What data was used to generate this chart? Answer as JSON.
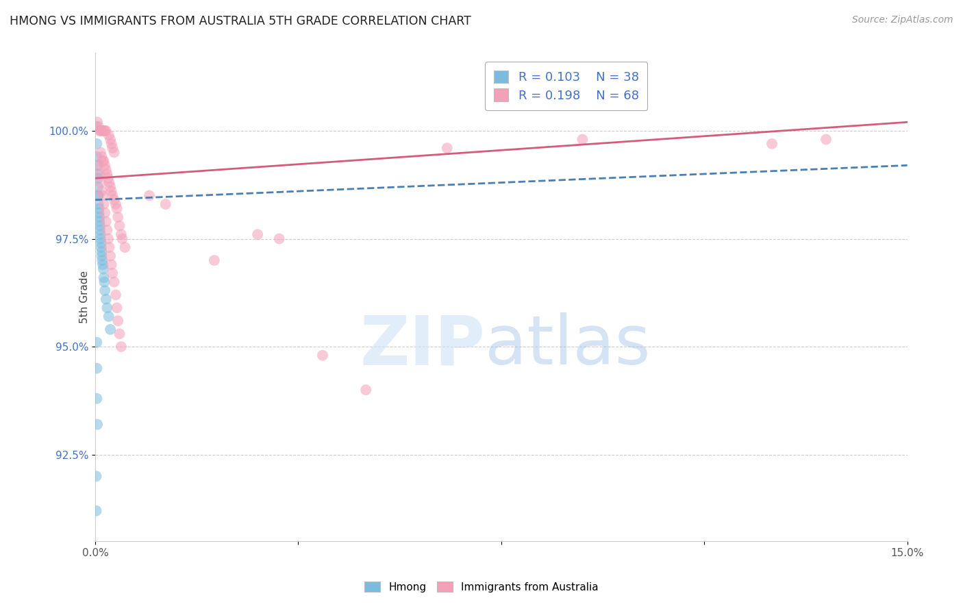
{
  "title": "HMONG VS IMMIGRANTS FROM AUSTRALIA 5TH GRADE CORRELATION CHART",
  "source": "Source: ZipAtlas.com",
  "ylabel": "5th Grade",
  "y_ticks": [
    92.5,
    95.0,
    97.5,
    100.0
  ],
  "y_tick_labels": [
    "92.5%",
    "95.0%",
    "97.5%",
    "100.0%"
  ],
  "xlim": [
    0.0,
    15.0
  ],
  "ylim": [
    90.5,
    101.8
  ],
  "blue_color": "#7bbcde",
  "pink_color": "#f4a0b8",
  "trend_blue_color": "#4a7fb5",
  "trend_pink_color": "#d45c7a",
  "blue_points": [
    [
      0.02,
      100.1
    ],
    [
      0.03,
      99.7
    ],
    [
      0.03,
      99.4
    ],
    [
      0.04,
      99.2
    ],
    [
      0.04,
      99.0
    ],
    [
      0.05,
      98.9
    ],
    [
      0.05,
      98.7
    ],
    [
      0.05,
      98.5
    ],
    [
      0.06,
      98.5
    ],
    [
      0.06,
      98.3
    ],
    [
      0.07,
      98.2
    ],
    [
      0.07,
      98.1
    ],
    [
      0.08,
      98.0
    ],
    [
      0.08,
      97.9
    ],
    [
      0.09,
      97.8
    ],
    [
      0.09,
      97.7
    ],
    [
      0.1,
      97.6
    ],
    [
      0.1,
      97.5
    ],
    [
      0.11,
      97.4
    ],
    [
      0.11,
      97.3
    ],
    [
      0.12,
      97.2
    ],
    [
      0.12,
      97.1
    ],
    [
      0.13,
      97.0
    ],
    [
      0.14,
      96.9
    ],
    [
      0.15,
      96.8
    ],
    [
      0.16,
      96.6
    ],
    [
      0.17,
      96.5
    ],
    [
      0.18,
      96.3
    ],
    [
      0.2,
      96.1
    ],
    [
      0.22,
      95.9
    ],
    [
      0.25,
      95.7
    ],
    [
      0.28,
      95.4
    ],
    [
      0.03,
      95.1
    ],
    [
      0.03,
      94.5
    ],
    [
      0.03,
      93.8
    ],
    [
      0.04,
      93.2
    ],
    [
      0.02,
      92.0
    ],
    [
      0.02,
      91.2
    ]
  ],
  "pink_points": [
    [
      0.04,
      100.2
    ],
    [
      0.06,
      100.1
    ],
    [
      0.08,
      100.0
    ],
    [
      0.1,
      100.0
    ],
    [
      0.12,
      100.0
    ],
    [
      0.14,
      100.0
    ],
    [
      0.16,
      100.0
    ],
    [
      0.18,
      100.0
    ],
    [
      0.2,
      100.0
    ],
    [
      0.25,
      99.9
    ],
    [
      0.28,
      99.8
    ],
    [
      0.3,
      99.7
    ],
    [
      0.32,
      99.6
    ],
    [
      0.35,
      99.5
    ],
    [
      0.1,
      99.5
    ],
    [
      0.12,
      99.4
    ],
    [
      0.14,
      99.3
    ],
    [
      0.16,
      99.3
    ],
    [
      0.18,
      99.2
    ],
    [
      0.2,
      99.1
    ],
    [
      0.22,
      99.0
    ],
    [
      0.24,
      98.9
    ],
    [
      0.26,
      98.8
    ],
    [
      0.28,
      98.7
    ],
    [
      0.3,
      98.6
    ],
    [
      0.32,
      98.5
    ],
    [
      0.35,
      98.4
    ],
    [
      0.38,
      98.3
    ],
    [
      0.4,
      98.2
    ],
    [
      0.42,
      98.0
    ],
    [
      0.45,
      97.8
    ],
    [
      0.48,
      97.6
    ],
    [
      0.5,
      97.5
    ],
    [
      0.55,
      97.3
    ],
    [
      1.0,
      98.5
    ],
    [
      1.3,
      98.3
    ],
    [
      2.2,
      97.0
    ],
    [
      3.0,
      97.6
    ],
    [
      3.4,
      97.5
    ],
    [
      4.2,
      94.8
    ],
    [
      5.0,
      94.0
    ],
    [
      6.5,
      99.6
    ],
    [
      9.0,
      99.8
    ],
    [
      12.5,
      99.7
    ],
    [
      13.5,
      99.8
    ],
    [
      0.06,
      99.2
    ],
    [
      0.08,
      99.0
    ],
    [
      0.1,
      98.8
    ],
    [
      0.12,
      98.6
    ],
    [
      0.14,
      98.5
    ],
    [
      0.16,
      98.3
    ],
    [
      0.18,
      98.1
    ],
    [
      0.2,
      97.9
    ],
    [
      0.22,
      97.7
    ],
    [
      0.24,
      97.5
    ],
    [
      0.26,
      97.3
    ],
    [
      0.28,
      97.1
    ],
    [
      0.3,
      96.9
    ],
    [
      0.32,
      96.7
    ],
    [
      0.35,
      96.5
    ],
    [
      0.38,
      96.2
    ],
    [
      0.4,
      95.9
    ],
    [
      0.42,
      95.6
    ],
    [
      0.45,
      95.3
    ],
    [
      0.48,
      95.0
    ]
  ]
}
